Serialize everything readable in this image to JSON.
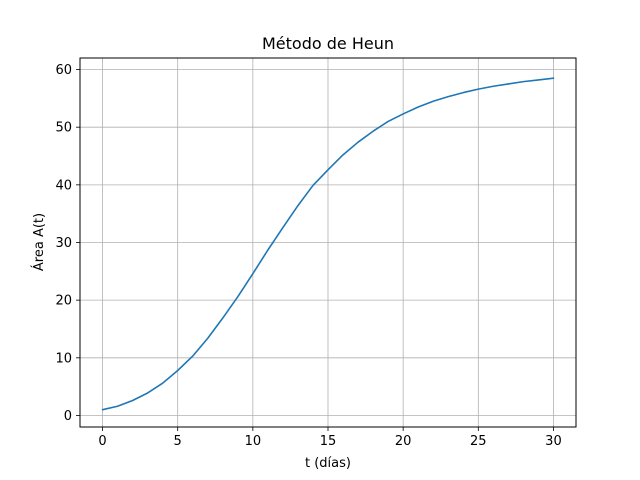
{
  "chart_data": {
    "type": "line",
    "title": "Método de Heun",
    "xlabel": "t (días)",
    "ylabel": "Área A(t)",
    "xlim": [
      -1.5,
      31.5
    ],
    "ylim": [
      -2.0,
      62.0
    ],
    "xticks": [
      0,
      5,
      10,
      15,
      20,
      25,
      30
    ],
    "yticks": [
      0,
      10,
      20,
      30,
      40,
      50,
      60
    ],
    "grid": true,
    "series": [
      {
        "color": "#1f77b4",
        "x": [
          0,
          1,
          2,
          3,
          4,
          5,
          6,
          7,
          8,
          9,
          10,
          11,
          12,
          13,
          14,
          15,
          16,
          17,
          18,
          19,
          20,
          21,
          22,
          23,
          24,
          25,
          26,
          27,
          28,
          29,
          30
        ],
        "y": [
          1.0,
          1.6,
          2.6,
          3.9,
          5.6,
          7.8,
          10.3,
          13.4,
          16.9,
          20.6,
          24.6,
          28.7,
          32.6,
          36.4,
          39.9,
          42.6,
          45.2,
          47.4,
          49.3,
          51.0,
          52.3,
          53.5,
          54.5,
          55.3,
          56.0,
          56.6,
          57.1,
          57.5,
          57.9,
          58.2,
          58.5
        ]
      }
    ]
  }
}
